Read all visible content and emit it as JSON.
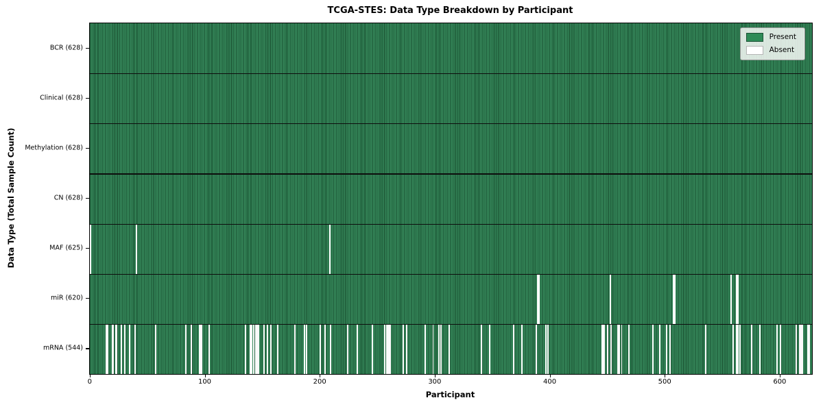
{
  "title": "TCGA-STES: Data Type Breakdown by Participant",
  "chart_data": {
    "type": "heatmap",
    "title": "TCGA-STES: Data Type Breakdown by Participant",
    "xlabel": "Participant",
    "ylabel": "Data Type (Total Sample Count)",
    "total_participants": 628,
    "xlim": [
      0,
      628
    ],
    "x_ticks": [
      0,
      100,
      200,
      300,
      400,
      500,
      600
    ],
    "grid": false,
    "legend_position": "upper right",
    "legend": [
      {
        "label": "Present",
        "color": "#2E8B57"
      },
      {
        "label": "Absent",
        "color": "#FFFFFF"
      }
    ],
    "colors": {
      "present_fill": "#2E8B57",
      "present_edge_stripe": "#16492b",
      "absent_fill": "#FAFAFA",
      "row_divider": "#0d0d0d",
      "plot_border": "#000000"
    },
    "rows": [
      {
        "data_type": "BCR",
        "label": "BCR (628)",
        "present_count": 628,
        "absent_count": 0,
        "absent_participants": []
      },
      {
        "data_type": "Clinical",
        "label": "Clinical (628)",
        "present_count": 628,
        "absent_count": 0,
        "absent_participants": []
      },
      {
        "data_type": "Methylation",
        "label": "Methylation (628)",
        "present_count": 628,
        "absent_count": 0,
        "absent_participants": []
      },
      {
        "data_type": "CN",
        "label": "CN (628)",
        "present_count": 628,
        "absent_count": 0,
        "absent_participants": []
      },
      {
        "data_type": "MAF",
        "label": "MAF (625)",
        "present_count": 625,
        "absent_count": 3,
        "absent_participants": [
          0,
          40,
          208
        ]
      },
      {
        "data_type": "miR",
        "label": "miR (620)",
        "present_count": 620,
        "absent_count": 8,
        "absent_participants": [
          389,
          390,
          452,
          507,
          508,
          557,
          562,
          563
        ]
      },
      {
        "data_type": "mRNA",
        "label": "mRNA (544)",
        "present_count": 544,
        "absent_count": 84,
        "absent_participants": [
          14,
          15,
          19,
          20,
          22,
          23,
          27,
          30,
          34,
          39,
          57,
          83,
          88,
          95,
          96,
          97,
          103,
          135,
          139,
          140,
          142,
          144,
          145,
          146,
          151,
          154,
          157,
          163,
          178,
          186,
          188,
          200,
          204,
          209,
          224,
          232,
          245,
          256,
          258,
          259,
          260,
          261,
          272,
          275,
          291,
          298,
          303,
          305,
          312,
          340,
          347,
          368,
          375,
          388,
          396,
          398,
          445,
          446,
          447,
          450,
          453,
          459,
          460,
          462,
          468,
          489,
          495,
          501,
          504,
          535,
          559,
          562,
          563,
          565,
          575,
          582,
          597,
          600,
          614,
          617,
          618,
          619,
          624,
          625
        ]
      }
    ]
  }
}
